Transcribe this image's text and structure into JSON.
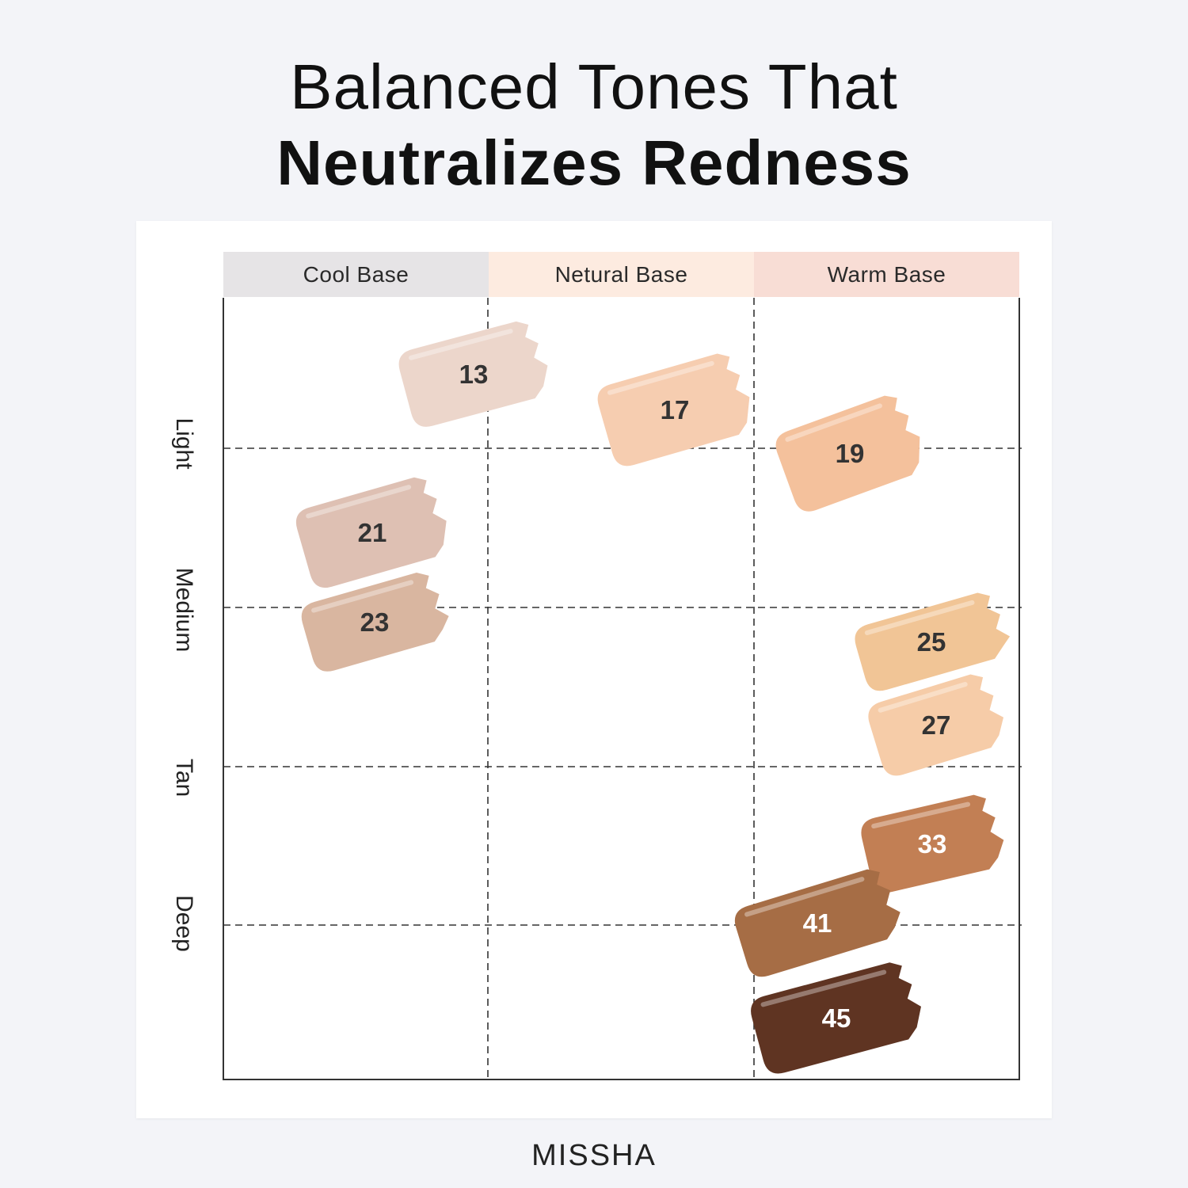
{
  "title": {
    "line1": "Balanced Tones That",
    "line2": "Neutralizes Redness"
  },
  "columns": [
    {
      "label": "Cool Base",
      "color": "#e6e4e6"
    },
    {
      "label": "Netural Base",
      "color": "#fdebe0"
    },
    {
      "label": "Warm Base",
      "color": "#f8ddd5"
    }
  ],
  "rows": [
    "Light",
    "Medium",
    "Tan",
    "Deep"
  ],
  "swatches": [
    {
      "shade": "13",
      "color": "#ecd6cb",
      "text_color": "#333333"
    },
    {
      "shade": "17",
      "color": "#f6cdb0",
      "text_color": "#333333"
    },
    {
      "shade": "19",
      "color": "#f4c19c",
      "text_color": "#333333"
    },
    {
      "shade": "21",
      "color": "#dec0b3",
      "text_color": "#333333"
    },
    {
      "shade": "23",
      "color": "#d9b6a0",
      "text_color": "#333333"
    },
    {
      "shade": "25",
      "color": "#f1c596",
      "text_color": "#333333"
    },
    {
      "shade": "27",
      "color": "#f6cca8",
      "text_color": "#333333"
    },
    {
      "shade": "33",
      "color": "#c27f54",
      "text_color": "#ffffff"
    },
    {
      "shade": "41",
      "color": "#a66d45",
      "text_color": "#ffffff"
    },
    {
      "shade": "45",
      "color": "#5f3422",
      "text_color": "#ffffff"
    }
  ],
  "brand": "MISSHA",
  "grid_line_color": "#333333"
}
